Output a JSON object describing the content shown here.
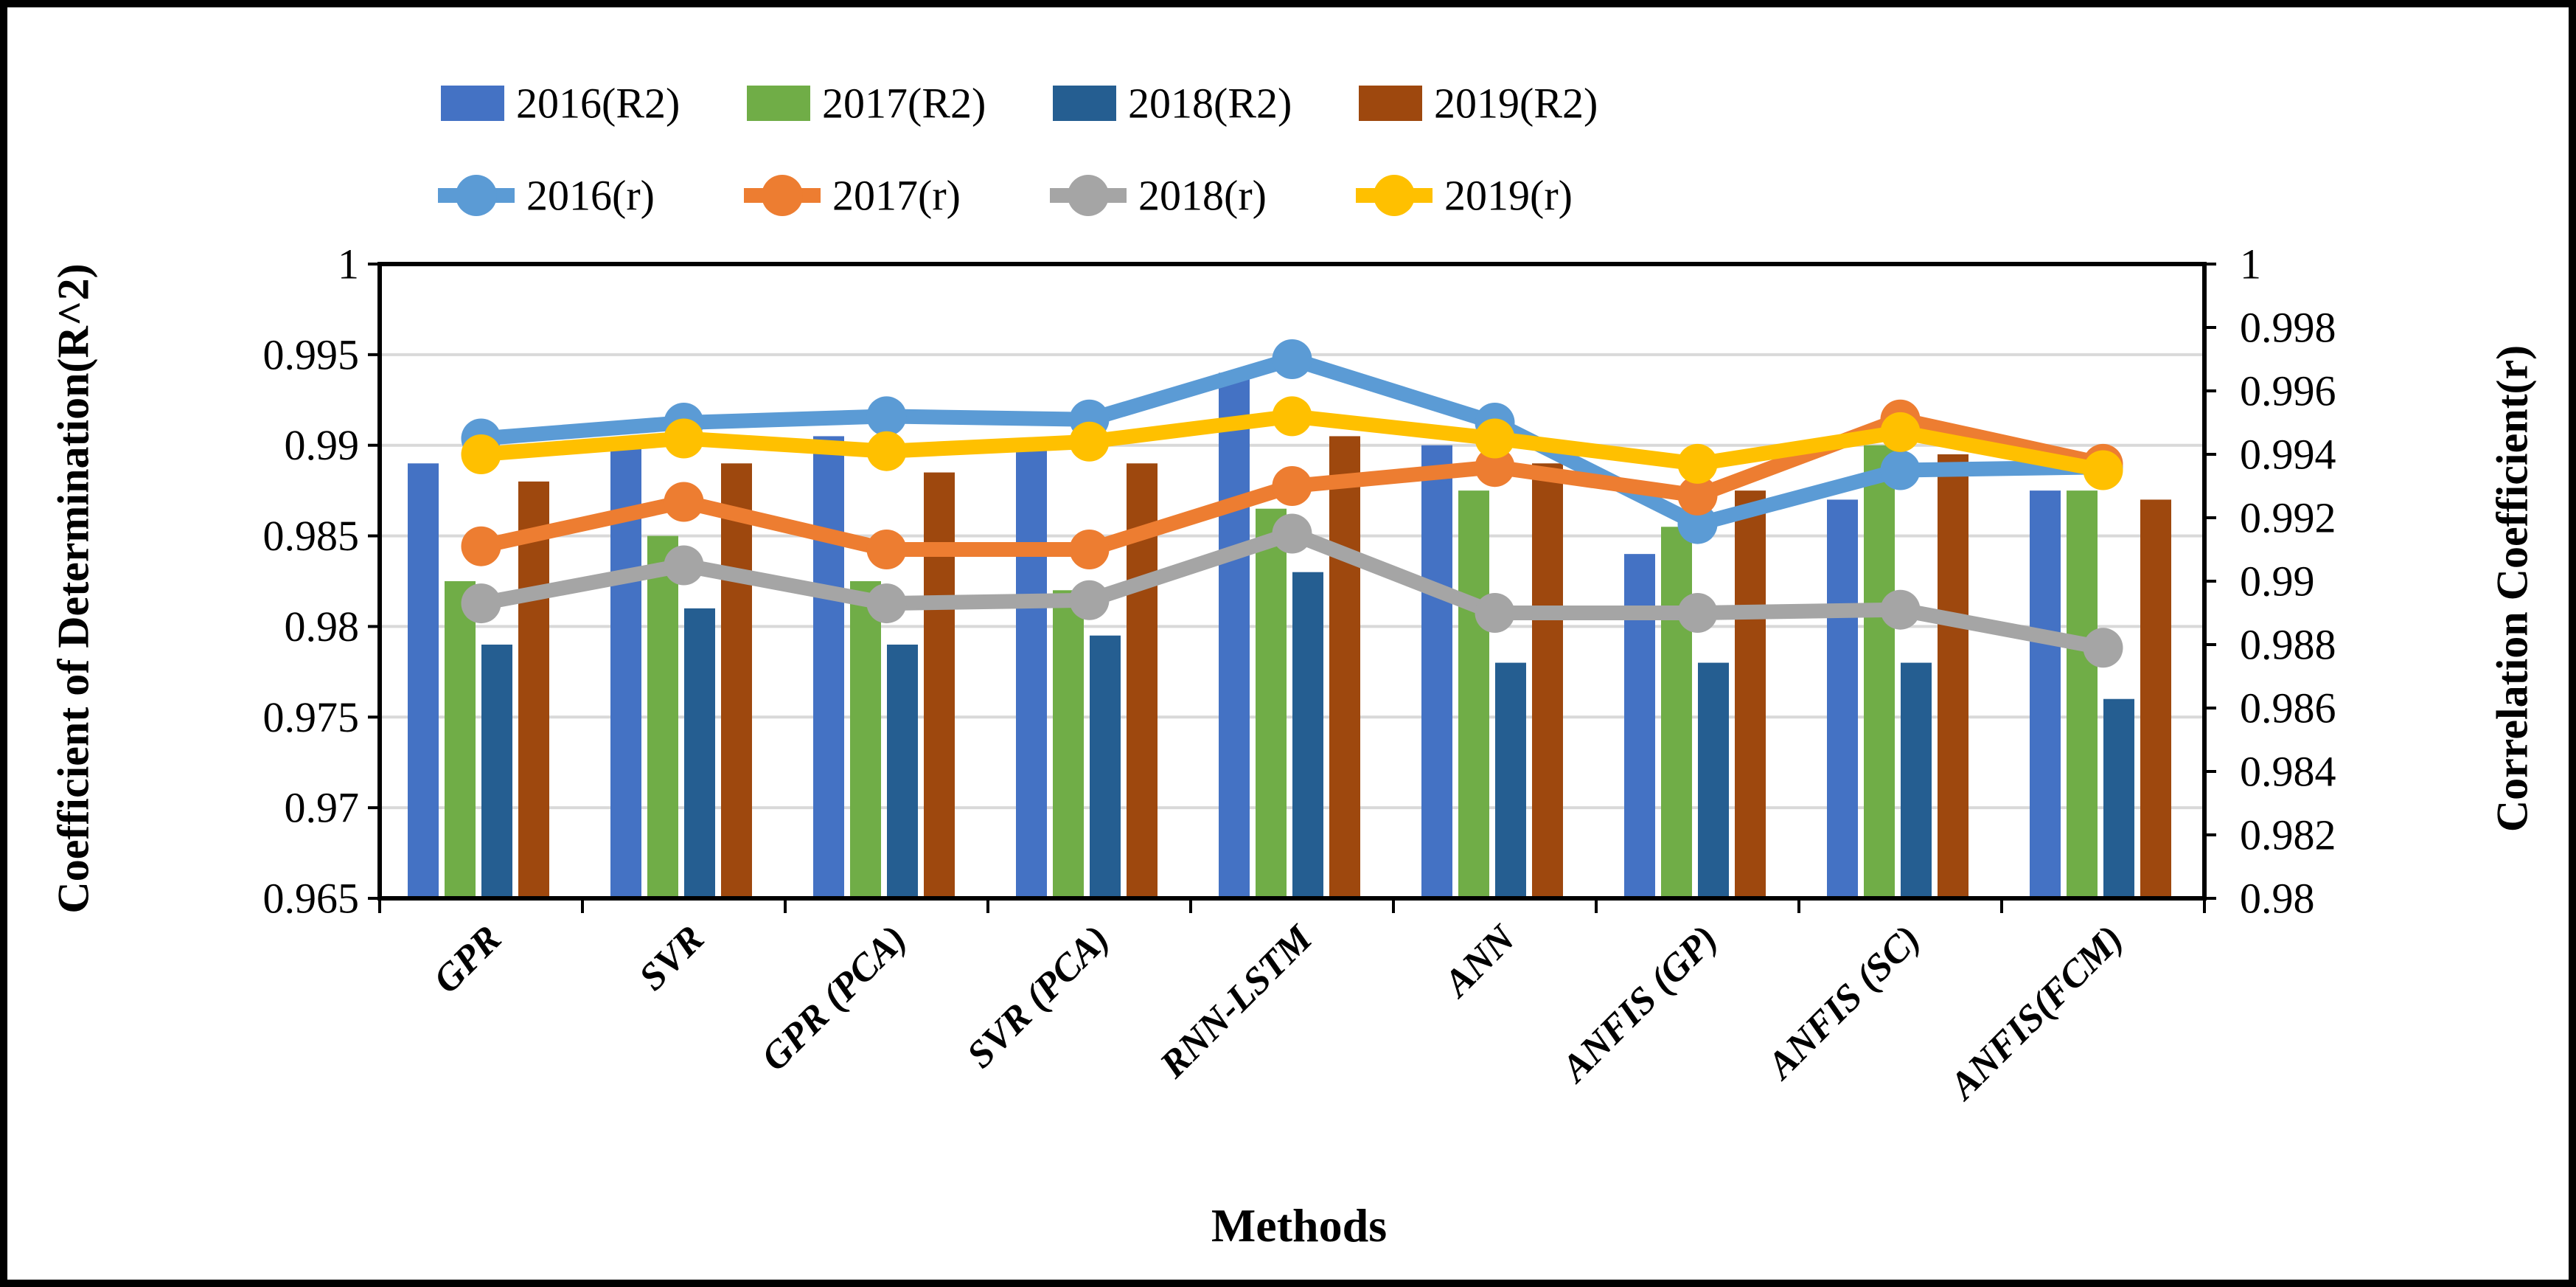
{
  "chart_data": {
    "type": "combo-bar-line",
    "title": "",
    "xlabel": "Methods",
    "categories": [
      "GPR",
      "SVR",
      "GPR (PCA)",
      "SVR (PCA)",
      "RNN-LSTM",
      "ANN",
      "ANFIS (GP)",
      "ANFIS (SC)",
      "ANFIS(FCM)"
    ],
    "left_axis": {
      "label": "Coefficient of Determination(R^2)",
      "min": 0.965,
      "max": 1.0,
      "step": 0.005,
      "tick_labels": [
        "1",
        "0.995",
        "0.99",
        "0.985",
        "0.98",
        "0.975",
        "0.97",
        "0.965"
      ]
    },
    "right_axis": {
      "label": "Correlation Coefficient(r)",
      "min": 0.98,
      "max": 1.0,
      "step": 0.002,
      "tick_labels": [
        "1",
        "0.998",
        "0.996",
        "0.994",
        "0.992",
        "0.99",
        "0.988",
        "0.986",
        "0.984",
        "0.982",
        "0.98"
      ]
    },
    "grid": "horizontal-on",
    "legend_position": "top-two-rows",
    "bar_series": [
      {
        "name": "2016(R2)",
        "color": "#4472C4",
        "values": [
          0.989,
          0.99,
          0.9905,
          0.99,
          0.994,
          0.99,
          0.984,
          0.987,
          0.9875
        ]
      },
      {
        "name": "2017(R2)",
        "color": "#70AD47",
        "values": [
          0.9825,
          0.985,
          0.9825,
          0.982,
          0.9865,
          0.9875,
          0.9855,
          0.99,
          0.9875
        ]
      },
      {
        "name": "2018(R2)",
        "color": "#255E91",
        "values": [
          0.979,
          0.981,
          0.979,
          0.9795,
          0.983,
          0.978,
          0.978,
          0.978,
          0.976
        ]
      },
      {
        "name": "2019(R2)",
        "color": "#9E480E",
        "values": [
          0.988,
          0.989,
          0.9885,
          0.989,
          0.9905,
          0.989,
          0.9875,
          0.9895,
          0.987
        ]
      }
    ],
    "line_series": [
      {
        "name": "2016(r)",
        "color": "#5B9BD5",
        "values": [
          0.9945,
          0.995,
          0.9952,
          0.9951,
          0.997,
          0.995,
          0.9918,
          0.9935,
          0.9936
        ]
      },
      {
        "name": "2017(r)",
        "color": "#ED7D31",
        "values": [
          0.9911,
          0.9925,
          0.991,
          0.991,
          0.993,
          0.9936,
          0.9927,
          0.9951,
          0.9937
        ]
      },
      {
        "name": "2018(r)",
        "color": "#A5A5A5",
        "values": [
          0.9893,
          0.9905,
          0.9893,
          0.9894,
          0.9915,
          0.989,
          0.989,
          0.9891,
          0.9879
        ]
      },
      {
        "name": "2019(r)",
        "color": "#FFC000",
        "values": [
          0.994,
          0.9945,
          0.9941,
          0.9944,
          0.9952,
          0.9945,
          0.9937,
          0.9947,
          0.9935
        ]
      }
    ]
  }
}
